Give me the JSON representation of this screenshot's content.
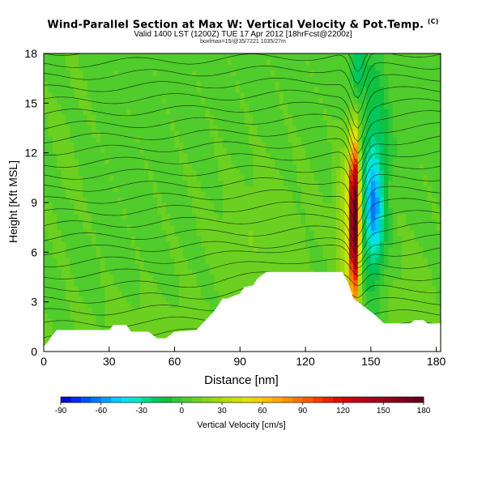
{
  "header": {
    "title": "Wind-Parallel Section at Max W: Vertical Velocity & Pot.Temp.",
    "copyright": "(C)",
    "subtitle": "Valid 1400 LST (1200Z) TUE 17 Apr 2012 [18hrFcst@2200z]",
    "subtitle2": "boxfmax=15/@35/7221 1035/27m"
  },
  "chart_data": {
    "type": "heatmap",
    "title": "Wind-Parallel Section at Max W: Vertical Velocity & Pot.Temp.",
    "xlabel": "Distance [nm]",
    "ylabel": "Height [Kft MSL]",
    "xlim": [
      0,
      182
    ],
    "ylim": [
      0,
      18
    ],
    "xticks": [
      0,
      30,
      60,
      90,
      120,
      150,
      180
    ],
    "yticks": [
      0,
      3,
      6,
      9,
      12,
      15,
      18
    ],
    "grid": false,
    "background_w": 5,
    "w_features": [
      {
        "x": 142.5,
        "y": 8.0,
        "sx": 1.6,
        "sy": 3.2,
        "w": 175
      },
      {
        "x": 139.5,
        "y": 7.5,
        "sx": 3.5,
        "sy": 3.5,
        "w": 30
      },
      {
        "x": 151.0,
        "y": 8.5,
        "sx": 3.0,
        "sy": 2.5,
        "w": -48
      },
      {
        "x": 152.0,
        "y": 11.5,
        "sx": 4.5,
        "sy": 5.0,
        "w": -22
      },
      {
        "x": 143.5,
        "y": 17.0,
        "sx": 2.0,
        "sy": 1.5,
        "w": -30
      },
      {
        "x": 48.0,
        "y": 1.5,
        "sx": 25.0,
        "sy": 1.5,
        "w": 7
      },
      {
        "x": 100.0,
        "y": 7.0,
        "sx": 20.0,
        "sy": 3.0,
        "w": 8
      },
      {
        "x": 168.0,
        "y": 3.5,
        "sx": 10.0,
        "sy": 2.5,
        "w": 6
      },
      {
        "x": 10.0,
        "y": 12.0,
        "sx": 6.0,
        "sy": 4.0,
        "w": 4
      }
    ],
    "terrain": [
      [
        0,
        0.3
      ],
      [
        2,
        0.6
      ],
      [
        4,
        1.0
      ],
      [
        6,
        1.3
      ],
      [
        30,
        1.3
      ],
      [
        32,
        1.6
      ],
      [
        38,
        1.6
      ],
      [
        40,
        1.2
      ],
      [
        48,
        1.2
      ],
      [
        52,
        0.8
      ],
      [
        56,
        0.8
      ],
      [
        60,
        1.2
      ],
      [
        70,
        1.3
      ],
      [
        75,
        2.0
      ],
      [
        78,
        2.4
      ],
      [
        82,
        3.2
      ],
      [
        84,
        3.2
      ],
      [
        90,
        3.5
      ],
      [
        92,
        3.9
      ],
      [
        96,
        4.0
      ],
      [
        98,
        4.4
      ],
      [
        102,
        4.8
      ],
      [
        137,
        4.8
      ],
      [
        140,
        4.0
      ],
      [
        142,
        3.2
      ],
      [
        146,
        2.8
      ],
      [
        152,
        2.2
      ],
      [
        156,
        1.7
      ],
      [
        168,
        1.7
      ],
      [
        170,
        1.9
      ],
      [
        174,
        1.9
      ],
      [
        176,
        1.7
      ],
      [
        182,
        1.7
      ]
    ],
    "colorbar": {
      "label": "Vertical Velocity [cm/s]",
      "ticks": [
        "-90",
        "-60",
        "-30",
        "0",
        "30",
        "60",
        "90",
        "120",
        "150",
        "180"
      ],
      "min": -90,
      "max": 180,
      "step": 7.5,
      "colors": [
        "#0010c8",
        "#0028ff",
        "#0050ff",
        "#0078ff",
        "#00a0ff",
        "#00c8ff",
        "#00e0e8",
        "#00e8c0",
        "#00d890",
        "#00c860",
        "#10c040",
        "#30c838",
        "#50cc2c",
        "#6cd020",
        "#88d418",
        "#a0d810",
        "#b8dc08",
        "#d0e000",
        "#e4e000",
        "#f0d000",
        "#f8c000",
        "#ffa800",
        "#ff9000",
        "#ff7400",
        "#ff5800",
        "#f83c00",
        "#f02000",
        "#e00c00",
        "#d00010",
        "#c00018",
        "#b0001c",
        "#a0001c",
        "#90001c",
        "#80001c",
        "#70001c",
        "#600018"
      ]
    }
  }
}
